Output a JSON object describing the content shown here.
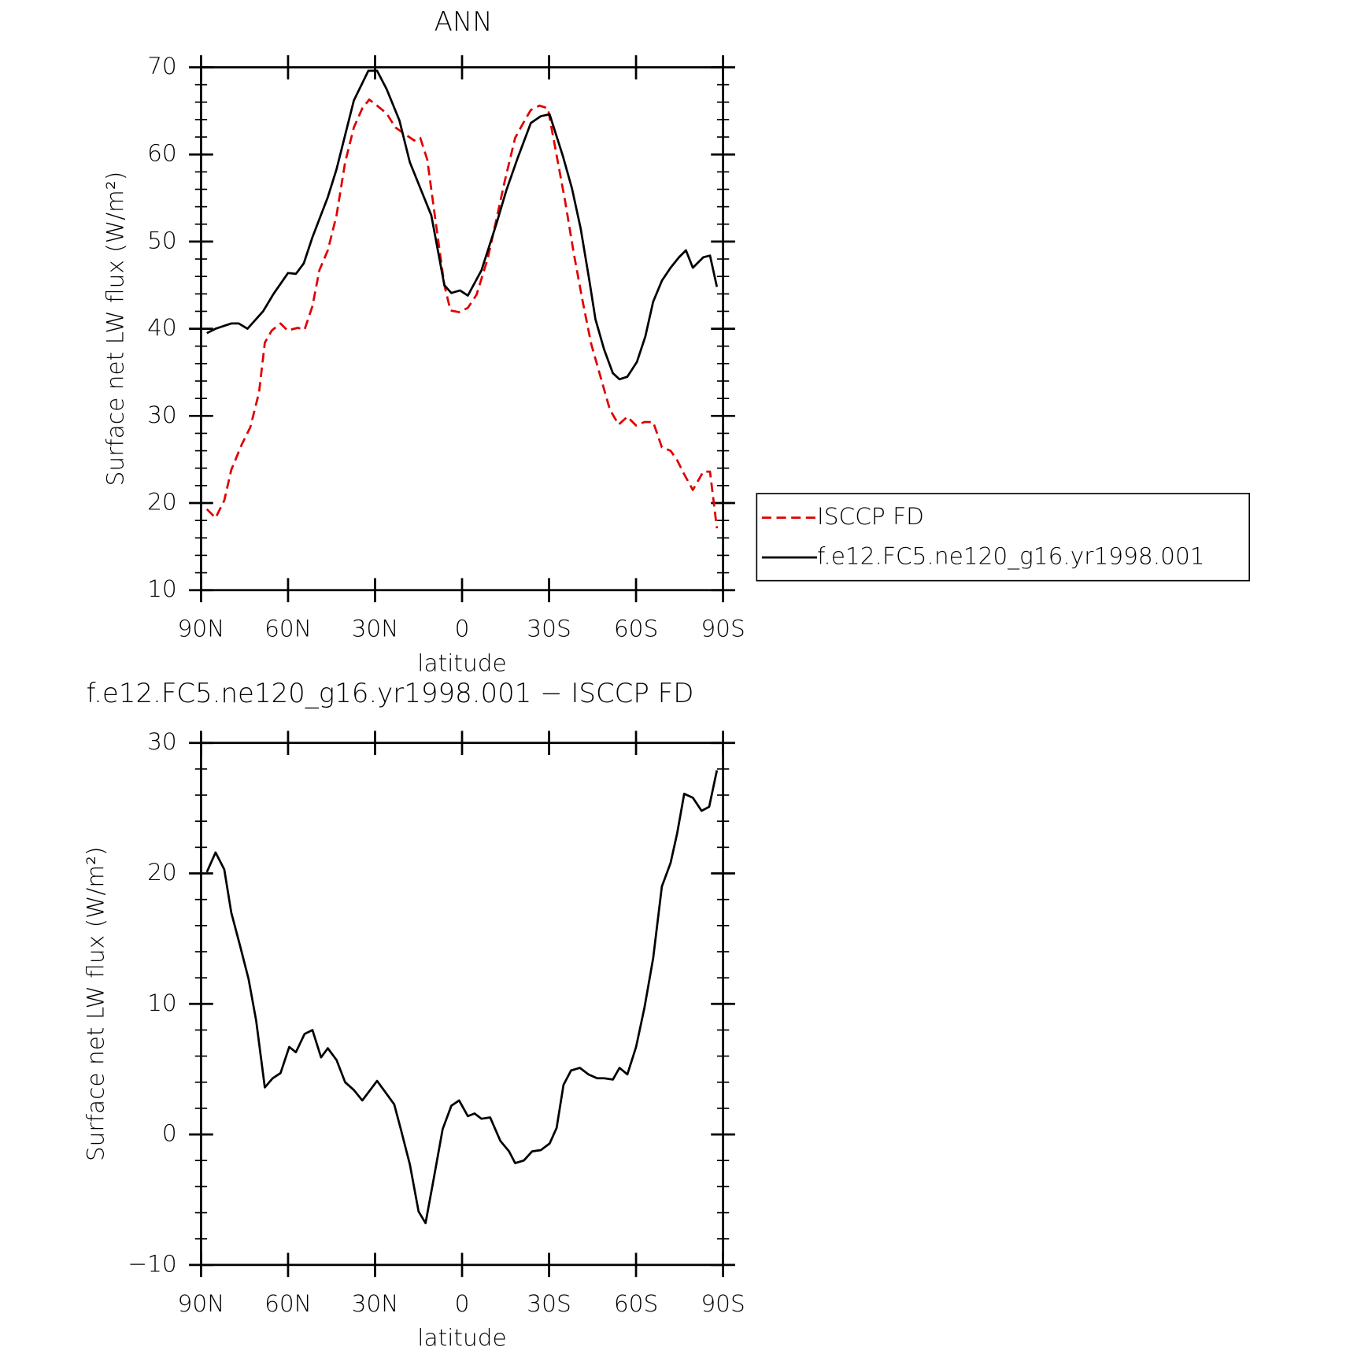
{
  "chart_data": [
    {
      "type": "line",
      "title": "ANN",
      "xlabel": "latitude",
      "ylabel": "Surface net LW flux (W/m²)",
      "xlim": [
        90,
        -90
      ],
      "xticks": [
        {
          "value": 90,
          "label": "90N"
        },
        {
          "value": 60,
          "label": "60N"
        },
        {
          "value": 30,
          "label": "30N"
        },
        0,
        {
          "value": -30,
          "label": "30S"
        },
        {
          "value": -60,
          "label": "60S"
        },
        {
          "value": -90,
          "label": "90S"
        }
      ],
      "ylim": [
        10,
        70
      ],
      "yticks": [
        10,
        20,
        30,
        40,
        50,
        60,
        70
      ],
      "yminorticks": [
        12,
        14,
        16,
        18,
        22,
        24,
        26,
        28,
        32,
        34,
        36,
        38,
        42,
        44,
        46,
        48,
        52,
        54,
        56,
        58,
        62,
        64,
        66,
        68
      ],
      "legend": "right",
      "series": [
        {
          "name": "ISCCP FD",
          "color": "#e00000",
          "dashed": true,
          "x": [
            88,
            85,
            82,
            79.6,
            76,
            73,
            70,
            68,
            65.6,
            62.6,
            60.2,
            56.7,
            54.3,
            51.6,
            49.2,
            46.3,
            43.3,
            40.3,
            37.3,
            34.4,
            32,
            29.3,
            26,
            23,
            20,
            16.5,
            14.4,
            12,
            9,
            6.1,
            4,
            1,
            -2,
            -5,
            -8.8,
            -11.8,
            -14.7,
            -18.3,
            -21.6,
            -23.7,
            -26.7,
            -29.6,
            -32.6,
            -35.6,
            -38.5,
            -41.5,
            -44.5,
            -48,
            -51,
            -54,
            -57,
            -60,
            -62.9,
            -65.9,
            -68.9,
            -71.9,
            -74.2,
            -76.6,
            -79.6,
            -83.2,
            -85.5,
            -87.9
          ],
          "values": [
            19.3,
            18.3,
            20.3,
            23.8,
            26.7,
            28.7,
            32.7,
            38.4,
            39.8,
            40.6,
            39.8,
            40.1,
            39.9,
            42.6,
            46.7,
            49,
            53,
            59.1,
            63.1,
            65.3,
            66.3,
            65.6,
            64.7,
            63.1,
            62.4,
            61.6,
            61.9,
            59.4,
            52,
            45,
            42.1,
            41.9,
            42.4,
            43.9,
            48,
            52.5,
            56.9,
            61.9,
            63.9,
            65.1,
            65.6,
            65.3,
            59.9,
            54.5,
            48.7,
            43.3,
            38.3,
            34.2,
            30.7,
            29,
            29.9,
            28.9,
            29.3,
            29.3,
            26.4,
            26,
            24.9,
            23.3,
            21.5,
            23.6,
            23.6,
            17.1
          ]
        },
        {
          "name": "f.e12.FC5.ne120_g16.yr1998.001",
          "color": "#000000",
          "dashed": false,
          "x": [
            88,
            85,
            79.6,
            77,
            74,
            68.6,
            65,
            60,
            57.3,
            54.6,
            51.6,
            46.3,
            43.3,
            37.3,
            32.3,
            29.3,
            26,
            21.6,
            18,
            10.6,
            6.1,
            3.7,
            0.7,
            -2,
            -6.7,
            -11.8,
            -15.3,
            -19.2,
            -23.7,
            -27.2,
            -30.2,
            -34.7,
            -37.9,
            -40.9,
            -43.9,
            -46,
            -49,
            -52,
            -54.3,
            -57,
            -60.3,
            -63.2,
            -65.9,
            -68.9,
            -71.9,
            -74.8,
            -77.2,
            -79.6,
            -83.2,
            -85.5,
            -87.9
          ],
          "values": [
            39.5,
            40,
            40.6,
            40.6,
            40,
            42,
            44,
            46.4,
            46.3,
            47.5,
            50.5,
            55.1,
            58.3,
            66.2,
            69.6,
            69.6,
            67.5,
            63.9,
            59.1,
            53,
            45,
            44.1,
            44.4,
            43.8,
            46.7,
            52,
            55.9,
            59.6,
            63.6,
            64.4,
            64.6,
            59.9,
            56.1,
            51.5,
            45.5,
            41.1,
            37.6,
            34.9,
            34.2,
            34.5,
            36.2,
            39.1,
            43.1,
            45.5,
            47,
            48.2,
            49,
            47,
            48.2,
            48.4,
            44.8
          ]
        }
      ]
    },
    {
      "type": "line",
      "title": "f.e12.FC5.ne120_g16.yr1998.001 − ISCCP FD",
      "xlabel": "latitude",
      "ylabel": "Surface net LW flux (W/m²)",
      "xlim": [
        90,
        -90
      ],
      "xticks": [
        {
          "value": 90,
          "label": "90N"
        },
        {
          "value": 60,
          "label": "60N"
        },
        {
          "value": 30,
          "label": "30N"
        },
        0,
        {
          "value": -30,
          "label": "30S"
        },
        {
          "value": -60,
          "label": "60S"
        },
        {
          "value": -90,
          "label": "90S"
        }
      ],
      "ylim": [
        -10,
        30
      ],
      "yticks": [
        {
          "value": -10,
          "label": "−10"
        },
        0,
        10,
        20,
        30
      ],
      "yminorticks": [
        -8,
        -6,
        -4,
        -2,
        2,
        4,
        6,
        8,
        12,
        14,
        16,
        18,
        22,
        24,
        26,
        28
      ],
      "color": "#000000",
      "x": [
        88,
        85,
        82,
        79.6,
        76.6,
        73.6,
        71,
        68,
        65.3,
        62.6,
        59.6,
        57.3,
        54.3,
        51.6,
        48.6,
        46.3,
        43.3,
        40.3,
        37.3,
        34.4,
        32,
        29.3,
        26,
        23.4,
        21,
        18,
        15,
        12.6,
        9.7,
        6.7,
        3.7,
        1,
        -2,
        -4.3,
        -6.7,
        -9.7,
        -13.2,
        -16.2,
        -18.3,
        -21.3,
        -24.2,
        -27.2,
        -30.2,
        -32.6,
        -35,
        -37.6,
        -40.6,
        -43.6,
        -46.6,
        -49,
        -52,
        -54.3,
        -57,
        -60,
        -62.9,
        -65.9,
        -68.9,
        -71.9,
        -74.2,
        -76.6,
        -79.6,
        -82.6,
        -85.2,
        -87.9
      ],
      "values": [
        20.1,
        21.6,
        20.3,
        17,
        14.5,
        11.9,
        8.7,
        3.6,
        4.3,
        4.7,
        6.7,
        6.3,
        7.7,
        8,
        5.9,
        6.6,
        5.7,
        4,
        3.4,
        2.6,
        3.3,
        4.1,
        3.1,
        2.3,
        0.3,
        -2.3,
        -5.9,
        -6.8,
        -3.3,
        0.4,
        2.2,
        2.6,
        1.4,
        1.6,
        1.2,
        1.3,
        -0.5,
        -1.3,
        -2.2,
        -2,
        -1.3,
        -1.2,
        -0.7,
        0.5,
        3.8,
        4.9,
        5.1,
        4.6,
        4.3,
        4.3,
        4.2,
        5.1,
        4.6,
        6.7,
        9.7,
        13.5,
        19,
        20.8,
        23.1,
        26.1,
        25.8,
        24.8,
        25.1,
        27.9
      ]
    }
  ]
}
